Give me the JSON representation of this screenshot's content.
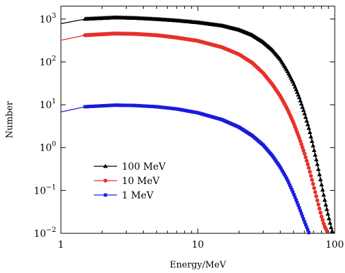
{
  "chart_data": {
    "type": "line",
    "xlabel": "Energy/MeV",
    "ylabel": "Number",
    "xscale": "log",
    "yscale": "log",
    "xlim": [
      1,
      100
    ],
    "ylim": [
      0.01,
      2000
    ],
    "grid": false,
    "legend_position": "lower-left",
    "x_ticks": [
      {
        "value": 1,
        "label": "1"
      },
      {
        "value": 10,
        "label": "10"
      },
      {
        "value": 100,
        "label": "100"
      }
    ],
    "y_ticks": [
      {
        "value": 0.01,
        "base": "10",
        "exp": "−2"
      },
      {
        "value": 0.1,
        "base": "10",
        "exp": "−1"
      },
      {
        "value": 1,
        "base": "10",
        "exp": "0"
      },
      {
        "value": 10,
        "base": "10",
        "exp": "1"
      },
      {
        "value": 100,
        "base": "10",
        "exp": "2"
      },
      {
        "value": 1000,
        "base": "10",
        "exp": "3"
      }
    ],
    "series": [
      {
        "name": "100 MeV",
        "color": "#000000",
        "marker": "triangle",
        "x": [
          1,
          1.5,
          2.5,
          3.5,
          5,
          7,
          10,
          15,
          20,
          25,
          30,
          35,
          40,
          45,
          50,
          55,
          60,
          65,
          70,
          75,
          80,
          85,
          90,
          93,
          95,
          96
        ],
        "y": [
          780,
          1000,
          1080,
          1050,
          990,
          920,
          830,
          700,
          560,
          420,
          290,
          190,
          115,
          62,
          32,
          15,
          6.5,
          2.7,
          1.0,
          0.38,
          0.14,
          0.055,
          0.025,
          0.016,
          0.012,
          0.011
        ]
      },
      {
        "name": "10 MeV",
        "color": "#e8312a",
        "marker": "circle",
        "x": [
          1,
          1.5,
          2.5,
          3.5,
          5,
          7,
          10,
          15,
          20,
          25,
          30,
          35,
          40,
          45,
          50,
          55,
          60,
          65,
          70,
          75,
          80,
          84,
          88
        ],
        "y": [
          320,
          420,
          460,
          450,
          420,
          370,
          310,
          220,
          150,
          95,
          55,
          30,
          16,
          8,
          3.8,
          1.7,
          0.75,
          0.32,
          0.13,
          0.055,
          0.025,
          0.015,
          0.011
        ]
      },
      {
        "name": "1 MeV",
        "color": "#1a1adc",
        "marker": "square",
        "x": [
          1,
          1.5,
          2.5,
          3.5,
          5,
          7,
          10,
          15,
          20,
          25,
          30,
          35,
          40,
          45,
          50,
          55,
          60,
          65
        ],
        "y": [
          6.8,
          9,
          9.8,
          9.6,
          9,
          8,
          6.5,
          4.5,
          3,
          1.9,
          1.15,
          0.65,
          0.35,
          0.18,
          0.085,
          0.04,
          0.019,
          0.01
        ]
      }
    ]
  }
}
